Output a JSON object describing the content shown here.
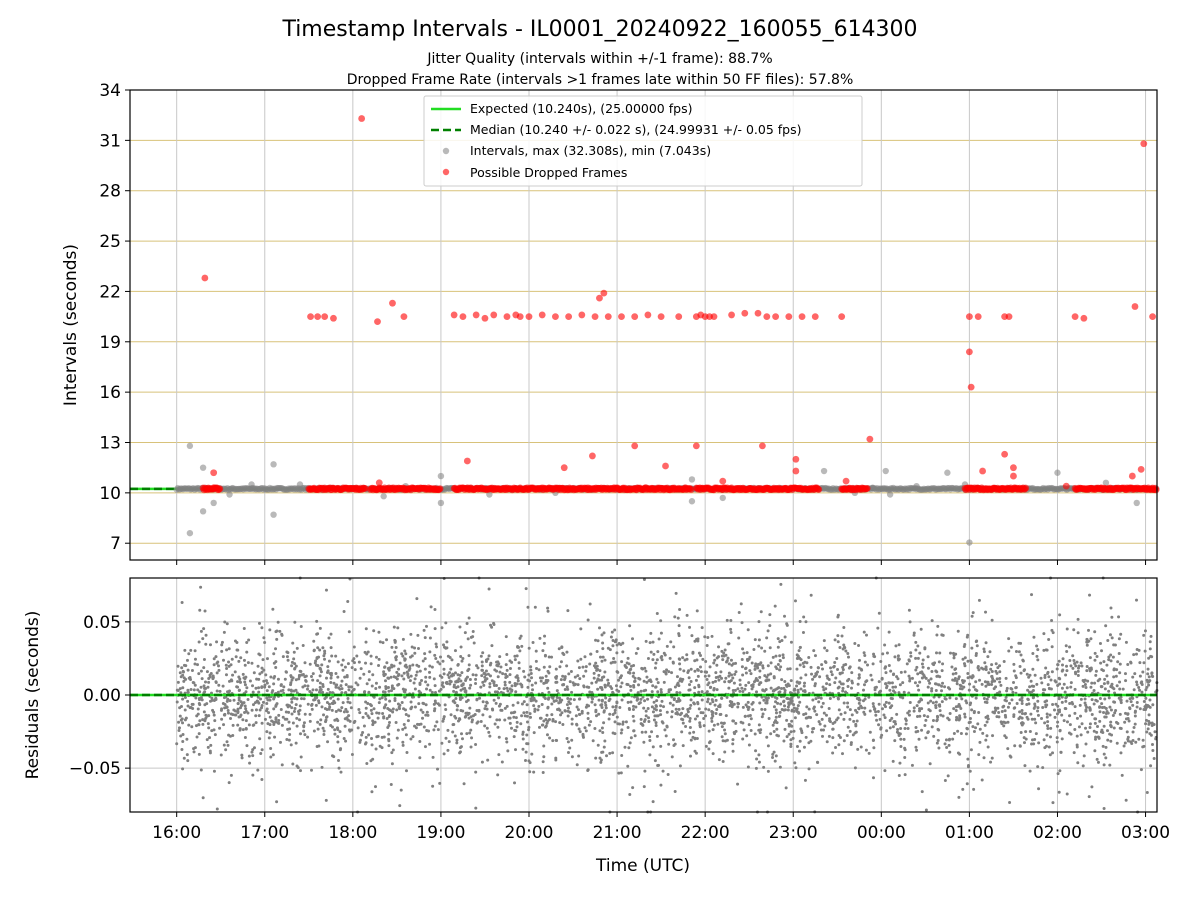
{
  "figure": {
    "title": "Timestamp Intervals - IL0001_20240922_160055_614300",
    "subtitle_line1": "Jitter Quality (intervals within +/-1 frame): 88.7%",
    "subtitle_line2": "Dropped Frame Rate (intervals >1 frames late within 50 FF files): 57.8%"
  },
  "colors": {
    "expected_line": "#22dd22",
    "median_line": "#008000",
    "intervals": "#808080",
    "dropped": "#ff0000",
    "hgrid_top": "#d8c27a",
    "vgrid": "#c8c8c8"
  },
  "chart_data": [
    {
      "type": "scatter",
      "panel": "intervals",
      "ylabel": "Intervals (seconds)",
      "xlabel": "",
      "ylim": [
        6,
        34
      ],
      "yticks": [
        7,
        10,
        13,
        16,
        19,
        22,
        25,
        28,
        31,
        34
      ],
      "xlim_hours": [
        15.47,
        27.13
      ],
      "grid": true,
      "legend_placement": "upper center",
      "legend": [
        {
          "label": "Expected (10.240s), (25.00000 fps)",
          "marker": "solid-line"
        },
        {
          "label": "Median (10.240 +/- 0.022 s), (24.99931 +/- 0.05 fps)",
          "marker": "dashed-line"
        },
        {
          "label": "Intervals, max (32.308s), min (7.043s)",
          "marker": "gray-dot"
        },
        {
          "label": "Possible Dropped Frames",
          "marker": "red-dot"
        }
      ],
      "series": [
        {
          "name": "Expected (10.240s), (25.00000 fps)",
          "style": "solid",
          "value": 10.24
        },
        {
          "name": "Median (10.240 +/- 0.022 s), (24.99931 +/- 0.05 fps)",
          "style": "dashed",
          "value": 10.24
        },
        {
          "name": "Intervals, max (32.308s), min (7.043s)",
          "baseline": 10.24,
          "baseline_range_hours": [
            16.0,
            27.13
          ],
          "x_hours": [
            16.15,
            16.15,
            16.3,
            16.3,
            16.42,
            16.6,
            16.85,
            17.1,
            17.1,
            17.4,
            18.35,
            18.6,
            19.0,
            19.0,
            19.55,
            20.3,
            21.85,
            21.85,
            22.2,
            23.35,
            23.7,
            23.9,
            24.05,
            24.1,
            24.4,
            24.75,
            24.95,
            25.0,
            26.0,
            26.55,
            26.9
          ],
          "y": [
            7.6,
            12.8,
            8.9,
            11.5,
            9.4,
            9.9,
            10.5,
            8.7,
            11.7,
            10.5,
            9.8,
            10.4,
            9.4,
            11.0,
            9.9,
            10.0,
            9.5,
            10.8,
            9.7,
            11.3,
            10.0,
            10.3,
            11.3,
            9.9,
            10.4,
            11.2,
            10.5,
            7.04,
            11.2,
            10.6,
            9.4
          ]
        },
        {
          "name": "Possible Dropped Frames",
          "baseline": 10.24,
          "baseline_segments_hours": [
            [
              16.3,
              16.5
            ],
            [
              17.5,
              18.15
            ],
            [
              18.2,
              19.0
            ],
            [
              19.15,
              21.85
            ],
            [
              21.9,
              23.3
            ],
            [
              23.55,
              23.85
            ],
            [
              24.95,
              25.6
            ],
            [
              25.6,
              25.65
            ],
            [
              26.2,
              27.13
            ]
          ],
          "x_hours": [
            16.32,
            16.42,
            17.52,
            17.6,
            17.68,
            17.78,
            18.1,
            18.28,
            18.45,
            18.58,
            19.15,
            19.25,
            19.4,
            19.5,
            19.6,
            19.75,
            19.85,
            19.9,
            20.0,
            20.15,
            20.3,
            20.45,
            20.6,
            20.75,
            20.8,
            20.85,
            20.9,
            21.05,
            21.2,
            21.35,
            21.5,
            21.7,
            21.9,
            21.95,
            22.0,
            22.05,
            22.1,
            22.3,
            22.45,
            22.6,
            22.7,
            22.8,
            22.95,
            23.1,
            23.25,
            23.55,
            25.0,
            25.1,
            25.4,
            25.45,
            26.2,
            26.3,
            26.88,
            26.98,
            27.08,
            25.0,
            25.02,
            16.42,
            18.3,
            19.3,
            20.4,
            20.72,
            21.2,
            21.55,
            21.9,
            22.2,
            22.65,
            23.03,
            23.03,
            23.6,
            23.87,
            25.15,
            25.4,
            25.5,
            25.5,
            26.85,
            26.95,
            26.1
          ],
          "y": [
            22.8,
            10.3,
            20.5,
            20.5,
            20.5,
            20.4,
            32.3,
            20.2,
            21.3,
            20.5,
            20.6,
            20.5,
            20.6,
            20.4,
            20.6,
            20.5,
            20.6,
            20.5,
            20.5,
            20.6,
            20.5,
            20.5,
            20.6,
            20.5,
            21.6,
            21.9,
            20.5,
            20.5,
            20.5,
            20.6,
            20.5,
            20.5,
            20.5,
            20.6,
            20.5,
            20.5,
            20.5,
            20.6,
            20.7,
            20.7,
            20.5,
            20.5,
            20.5,
            20.5,
            20.5,
            20.5,
            20.5,
            20.5,
            20.5,
            20.5,
            20.5,
            20.4,
            21.1,
            30.8,
            20.5,
            18.4,
            16.3,
            11.2,
            10.6,
            11.9,
            11.5,
            12.2,
            12.8,
            11.6,
            12.8,
            10.7,
            12.8,
            12.0,
            11.3,
            10.7,
            13.2,
            11.3,
            12.3,
            11.5,
            11.0,
            11.0,
            11.4,
            10.4
          ]
        }
      ]
    },
    {
      "type": "scatter",
      "panel": "residuals",
      "ylabel": "Residuals (seconds)",
      "xlabel": "Time (UTC)",
      "ylim": [
        -0.08,
        0.08
      ],
      "yticks": [
        0.05,
        0.0,
        -0.05
      ],
      "ytick_labels": [
        "0.05",
        "0.00",
        "−0.05"
      ],
      "xlim_hours": [
        15.47,
        27.13
      ],
      "xticks_hours": [
        16,
        17,
        18,
        19,
        20,
        21,
        22,
        23,
        24,
        25,
        26,
        27
      ],
      "xtick_labels": [
        "16:00",
        "17:00",
        "18:00",
        "19:00",
        "20:00",
        "21:00",
        "22:00",
        "23:00",
        "00:00",
        "01:00",
        "02:00",
        "03:00"
      ],
      "grid": true,
      "series": [
        {
          "name": "",
          "style": "dashed",
          "value": 0.0
        },
        {
          "name": "",
          "kind": "points",
          "approx_count": 4000,
          "x_range_hours": [
            16.0,
            27.13
          ],
          "spread_sd": 0.022,
          "outliers_reach": 0.08
        }
      ]
    }
  ]
}
